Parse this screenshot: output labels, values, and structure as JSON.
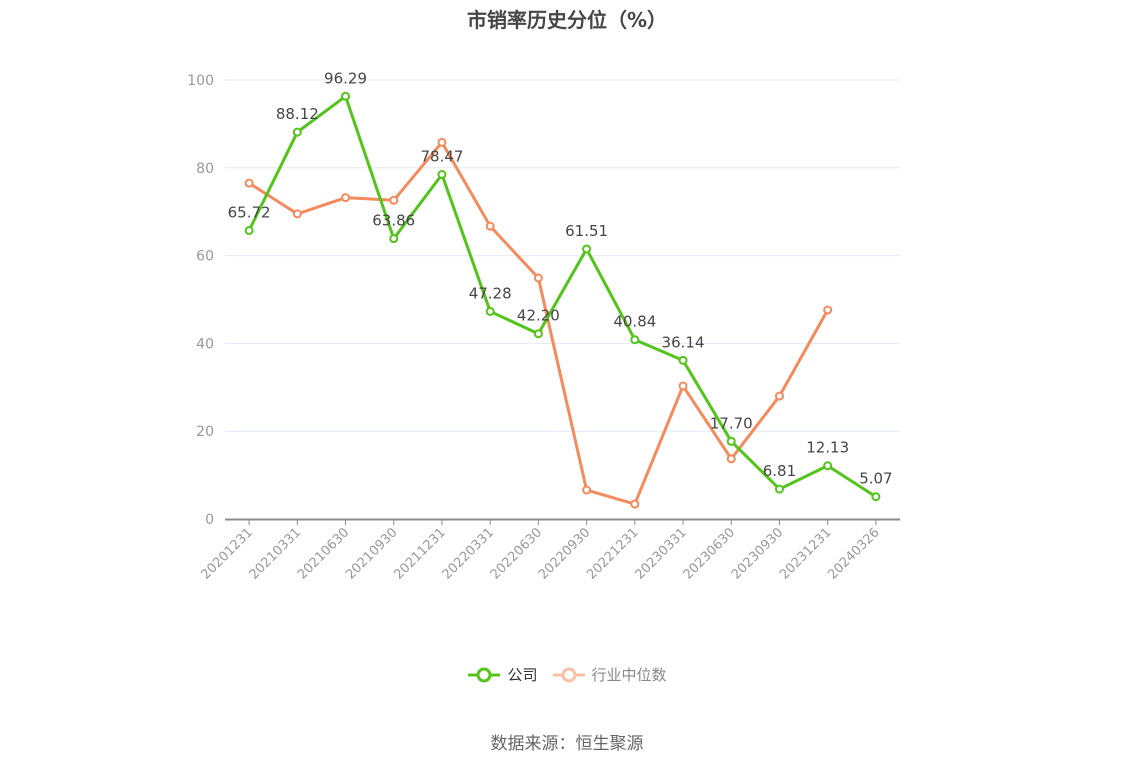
{
  "title": "市销率历史分位（%）",
  "legend": {
    "company": "公司",
    "industry": "行业中位数"
  },
  "source": "数据来源：恒生聚源",
  "colors": {
    "company": "#52c41a",
    "industry": "#f58a5c",
    "industry_legend": "#fbbfa6",
    "grid": "#e6e9f2",
    "axis": "#8c8c8c"
  },
  "chart_data": {
    "type": "line",
    "title": "市销率历史分位（%）",
    "xlabel": "",
    "ylabel": "",
    "ylim": [
      0,
      100
    ],
    "yticks": [
      0,
      20,
      40,
      60,
      80,
      100
    ],
    "grid": true,
    "legend_position": "bottom",
    "categories": [
      "20201231",
      "20210331",
      "20210630",
      "20210930",
      "20211231",
      "20220331",
      "20220630",
      "20220930",
      "20221231",
      "20230331",
      "20230630",
      "20230930",
      "20231231",
      "20240326"
    ],
    "series": [
      {
        "name": "公司",
        "values": [
          65.72,
          88.12,
          96.29,
          63.86,
          78.47,
          47.28,
          42.2,
          61.51,
          40.84,
          36.14,
          17.7,
          6.81,
          12.13,
          5.07
        ],
        "labels": [
          "65.72",
          "88.12",
          "96.29",
          "63.86",
          "78.47",
          "47.28",
          "42.20",
          "61.51",
          "40.84",
          "36.14",
          "17.70",
          "6.81",
          "12.13",
          "5.07"
        ]
      },
      {
        "name": "行业中位数",
        "values": [
          76.5,
          69.5,
          73.2,
          72.6,
          85.8,
          66.7,
          54.9,
          6.6,
          3.4,
          30.3,
          13.7,
          28.0,
          47.6,
          null
        ]
      }
    ]
  }
}
